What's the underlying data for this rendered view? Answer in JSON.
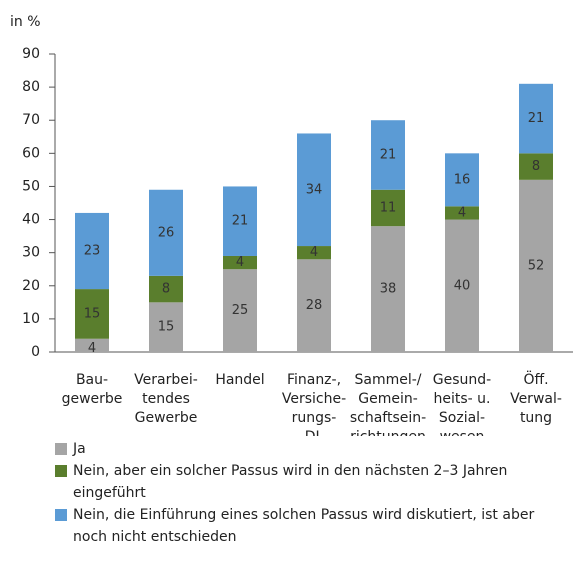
{
  "chart_data": {
    "type": "stacked_bar",
    "y_axis_label": "in %",
    "categories": [
      [
        "Bau-",
        "gewerbe"
      ],
      [
        "Verarbei-",
        "tendes",
        "Gewerbe"
      ],
      [
        "Handel"
      ],
      [
        "Finanz-,",
        "Versiche-",
        "rungs-",
        "DL"
      ],
      [
        "Sammel-/",
        "Gemein-",
        "schaftsein-",
        "richtungen"
      ],
      [
        "Gesund-",
        "heits- u.",
        "Sozial-",
        "wesen"
      ],
      [
        "Öff.",
        "Verwal-",
        "tung"
      ]
    ],
    "series": [
      {
        "name": "Ja",
        "color": "#a5a5a5",
        "values": [
          4,
          15,
          25,
          28,
          38,
          40,
          52
        ]
      },
      {
        "name": "Nein, aber ein solcher Passus wird in den nächsten 2–3 Jahren eingeführt",
        "color": "#5a7e2d",
        "values": [
          15,
          8,
          4,
          4,
          11,
          4,
          8
        ]
      },
      {
        "name": "Nein, die Einführung eines solchen Passus wird diskutiert, ist aber noch nicht entschieden",
        "color": "#5b9bd5",
        "values": [
          23,
          26,
          21,
          34,
          21,
          16,
          21
        ]
      }
    ],
    "ylim": [
      0,
      90
    ],
    "yticks": [
      0,
      10,
      20,
      30,
      40,
      50,
      60,
      70,
      80,
      90
    ],
    "legend": "bottom"
  }
}
